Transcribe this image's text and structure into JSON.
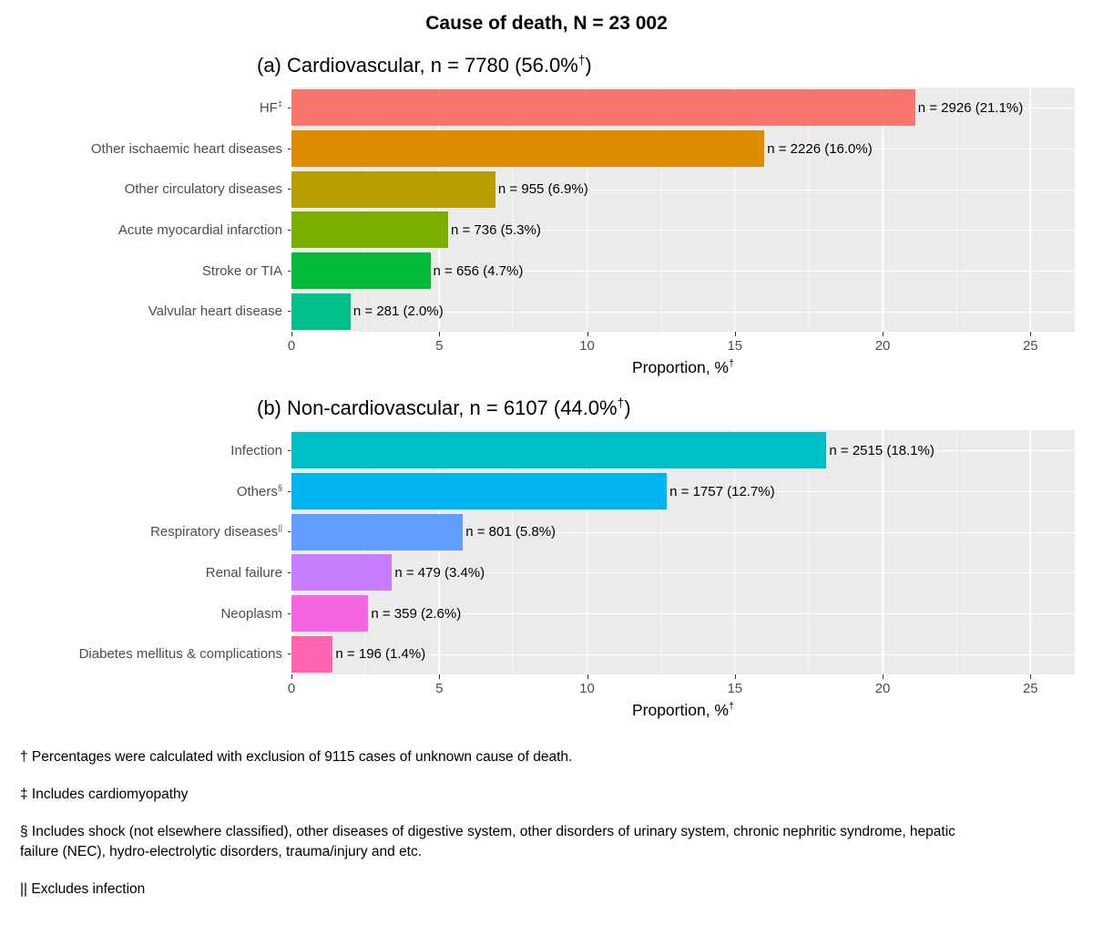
{
  "page_title": "Cause of death, N = 23 002",
  "theme": {
    "panel_bg": "#EBEBEB",
    "grid_color": "#FFFFFF",
    "axis_text_color": "#4D4D4D",
    "tick_color": "#333333"
  },
  "footnotes": [
    "† Percentages were calculated with exclusion of 9115 cases of unknown cause of death.",
    "‡ Includes cardiomyopathy",
    "§ Includes shock (not elsewhere classified), other diseases of digestive system, other disorders of urinary system, chronic nephritic syndrome, hepatic failure (NEC), hydro-electrolytic disorders, trauma/injury and etc.",
    "|| Excludes infection"
  ],
  "chart_data": [
    {
      "type": "bar",
      "orientation": "horizontal",
      "title": "(a) Cardiovascular, n = 7780 (56.0%†)",
      "title_parts": {
        "main": "(a) Cardiovascular, n = 7780 (56.0%",
        "sup": "†",
        "end": ")"
      },
      "xlabel": "Proportion, %†",
      "xlabel_parts": {
        "main": "Proportion, %",
        "sup": "†"
      },
      "xlim": [
        0,
        26.5
      ],
      "xticks": [
        0,
        5,
        10,
        15,
        20,
        25
      ],
      "xticks_minor": [
        2.5,
        7.5,
        12.5,
        17.5,
        22.5
      ],
      "grid": true,
      "legend": "none",
      "rows": [
        {
          "category": "HF",
          "category_sup": "‡",
          "value": 21.1,
          "count": 2926,
          "bar_label": "n = 2926 (21.1%)",
          "color": "#F8766D"
        },
        {
          "category": "Other ischaemic heart diseases",
          "category_sup": "",
          "value": 16.0,
          "count": 2226,
          "bar_label": "n = 2226 (16.0%)",
          "color": "#DE8C00"
        },
        {
          "category": "Other circulatory diseases",
          "category_sup": "",
          "value": 6.9,
          "count": 955,
          "bar_label": "n = 955 (6.9%)",
          "color": "#B79F00"
        },
        {
          "category": "Acute myocardial infarction",
          "category_sup": "",
          "value": 5.3,
          "count": 736,
          "bar_label": "n = 736 (5.3%)",
          "color": "#7CAE00"
        },
        {
          "category": "Stroke or TIA",
          "category_sup": "",
          "value": 4.7,
          "count": 656,
          "bar_label": "n = 656 (4.7%)",
          "color": "#00BA38"
        },
        {
          "category": "Valvular heart disease",
          "category_sup": "",
          "value": 2.0,
          "count": 281,
          "bar_label": "n = 281 (2.0%)",
          "color": "#00C08B"
        }
      ]
    },
    {
      "type": "bar",
      "orientation": "horizontal",
      "title": "(b) Non-cardiovascular, n = 6107 (44.0%†)",
      "title_parts": {
        "main": "(b) Non-cardiovascular, n = 6107 (44.0%",
        "sup": "†",
        "end": ")"
      },
      "xlabel": "Proportion, %†",
      "xlabel_parts": {
        "main": "Proportion, %",
        "sup": "†"
      },
      "xlim": [
        0,
        26.5
      ],
      "xticks": [
        0,
        5,
        10,
        15,
        20,
        25
      ],
      "xticks_minor": [
        2.5,
        7.5,
        12.5,
        17.5,
        22.5
      ],
      "grid": true,
      "legend": "none",
      "rows": [
        {
          "category": "Infection",
          "category_sup": "",
          "value": 18.1,
          "count": 2515,
          "bar_label": "n = 2515 (18.1%)",
          "color": "#00BFC4"
        },
        {
          "category": "Others",
          "category_sup": "§",
          "value": 12.7,
          "count": 1757,
          "bar_label": "n = 1757 (12.7%)",
          "color": "#00B4F0"
        },
        {
          "category": "Respiratory diseases",
          "category_sup": "||",
          "value": 5.8,
          "count": 801,
          "bar_label": "n = 801 (5.8%)",
          "color": "#619CFF"
        },
        {
          "category": "Renal failure",
          "category_sup": "",
          "value": 3.4,
          "count": 479,
          "bar_label": "n = 479 (3.4%)",
          "color": "#C77CFF"
        },
        {
          "category": "Neoplasm",
          "category_sup": "",
          "value": 2.6,
          "count": 359,
          "bar_label": "n = 359 (2.6%)",
          "color": "#F564E3"
        },
        {
          "category": "Diabetes mellitus & complications",
          "category_sup": "",
          "value": 1.4,
          "count": 196,
          "bar_label": "n = 196 (1.4%)",
          "color": "#FF64B0"
        }
      ]
    }
  ]
}
